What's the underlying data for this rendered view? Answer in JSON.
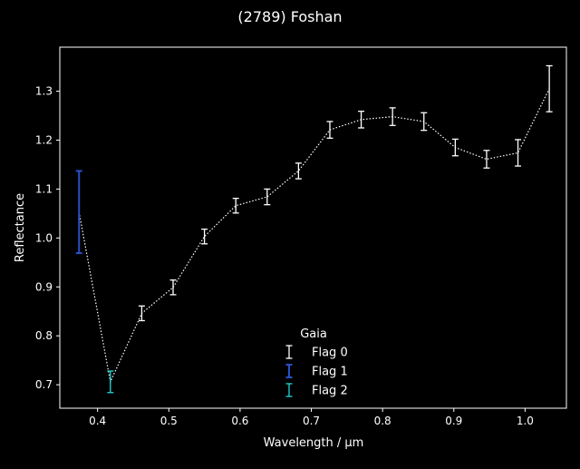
{
  "chart_data": {
    "type": "scatter",
    "title": "(2789) Foshan",
    "xlabel": "Wavelength / μm",
    "ylabel": "Reflectance",
    "xlim": [
      0.347,
      1.058
    ],
    "ylim": [
      0.652,
      1.39
    ],
    "xticks": [
      0.4,
      0.5,
      0.6,
      0.7,
      0.8,
      0.9,
      1.0
    ],
    "xtick_labels": [
      "0.4",
      "0.5",
      "0.6",
      "0.7",
      "0.8",
      "0.9",
      "1.0"
    ],
    "yticks": [
      0.7,
      0.8,
      0.9,
      1.0,
      1.1,
      1.2,
      1.3
    ],
    "ytick_labels": [
      "0.7",
      "0.8",
      "0.9",
      "1.0",
      "1.1",
      "1.2",
      "1.3"
    ],
    "grid": false,
    "legend": {
      "title": "Gaia",
      "position": "lower-center"
    },
    "line_style": "dotted",
    "line_color": "#ffffff",
    "series": [
      {
        "name": "Flag 0",
        "color": "#ffffff",
        "x": [
          0.462,
          0.506,
          0.55,
          0.594,
          0.638,
          0.682,
          0.726,
          0.77,
          0.814,
          0.858,
          0.902,
          0.946,
          0.99,
          1.034
        ],
        "y": [
          0.846,
          0.899,
          1.003,
          1.066,
          1.084,
          1.137,
          1.221,
          1.242,
          1.248,
          1.238,
          1.185,
          1.161,
          1.174,
          1.305
        ],
        "err": [
          0.015,
          0.015,
          0.015,
          0.015,
          0.016,
          0.016,
          0.017,
          0.017,
          0.018,
          0.018,
          0.017,
          0.018,
          0.027,
          0.047
        ]
      },
      {
        "name": "Flag 1",
        "color": "#2850c8",
        "x": [
          0.374
        ],
        "y": [
          1.053
        ],
        "err": [
          0.084
        ]
      },
      {
        "name": "Flag 2",
        "color": "#22d8d8",
        "x": [
          0.418
        ],
        "y": [
          0.706
        ],
        "err": [
          0.022
        ]
      }
    ]
  }
}
